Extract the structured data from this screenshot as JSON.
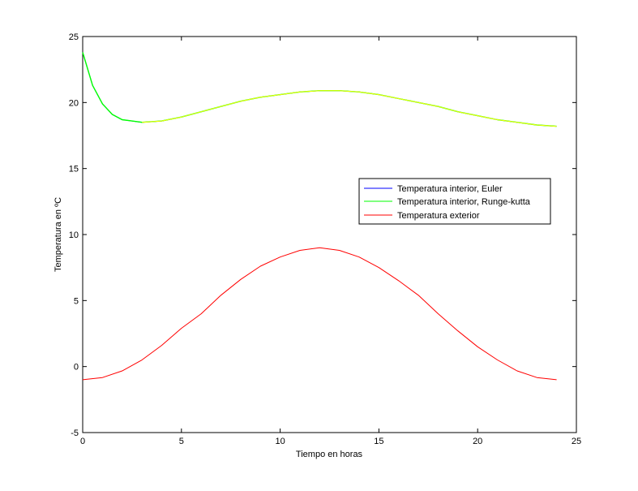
{
  "chart_data": {
    "type": "line",
    "title": "",
    "xlabel": "Tiempo en horas",
    "ylabel": "Temperatura en ºC",
    "xlim": [
      0,
      25
    ],
    "ylim": [
      -5,
      25
    ],
    "xticks": [
      0,
      5,
      10,
      15,
      20,
      25
    ],
    "yticks": [
      -5,
      0,
      5,
      10,
      15,
      20,
      25
    ],
    "xtick_labels": [
      "0",
      "5",
      "10",
      "15",
      "20",
      "25"
    ],
    "ytick_labels": [
      "-5",
      "0",
      "5",
      "10",
      "15",
      "20",
      "25"
    ],
    "grid": false,
    "legend_position": "right",
    "series": [
      {
        "name": "Temperatura interior, Euler",
        "color": "#0000ff",
        "x": [
          0,
          0.5,
          1,
          1.5,
          2,
          2.5,
          3,
          4,
          5,
          6,
          7,
          8,
          9,
          10,
          11,
          12,
          13,
          14,
          15,
          16,
          17,
          18,
          19,
          20,
          21,
          22,
          23,
          24
        ],
        "y": [
          23.8,
          21.3,
          19.9,
          19.1,
          18.7,
          18.6,
          18.5,
          18.6,
          18.9,
          19.3,
          19.7,
          20.1,
          20.4,
          20.6,
          20.8,
          20.9,
          20.9,
          20.8,
          20.6,
          20.3,
          20.0,
          19.7,
          19.3,
          19.0,
          18.7,
          18.5,
          18.3,
          18.2
        ]
      },
      {
        "name": "Temperatura interior, Runge-kutta",
        "color": "#00ff00",
        "x": [
          0,
          0.5,
          1,
          1.5,
          2,
          2.5,
          3,
          4,
          5,
          6,
          7,
          8,
          9,
          10,
          11,
          12,
          13,
          14,
          15,
          16,
          17,
          18,
          19,
          20,
          21,
          22,
          23,
          24
        ],
        "y": [
          23.8,
          21.3,
          19.9,
          19.1,
          18.7,
          18.6,
          18.5,
          18.6,
          18.9,
          19.3,
          19.7,
          20.1,
          20.4,
          20.6,
          20.8,
          20.9,
          20.9,
          20.8,
          20.6,
          20.3,
          20.0,
          19.7,
          19.3,
          19.0,
          18.7,
          18.5,
          18.3,
          18.2
        ]
      },
      {
        "name": "Temperatura exterior",
        "color": "#ff0000",
        "x": [
          0,
          1,
          2,
          3,
          4,
          5,
          6,
          7,
          8,
          9,
          10,
          11,
          12,
          13,
          14,
          15,
          16,
          17,
          18,
          19,
          20,
          21,
          22,
          23,
          24
        ],
        "y": [
          -1.0,
          -0.83,
          -0.33,
          0.5,
          1.6,
          2.9,
          4.0,
          5.4,
          6.6,
          7.6,
          8.3,
          8.8,
          9.0,
          8.8,
          8.3,
          7.5,
          6.5,
          5.4,
          4.0,
          2.7,
          1.5,
          0.5,
          -0.33,
          -0.83,
          -1.0
        ]
      }
    ],
    "overlay_color": "#ffff00",
    "overlay_from_x": 3
  }
}
